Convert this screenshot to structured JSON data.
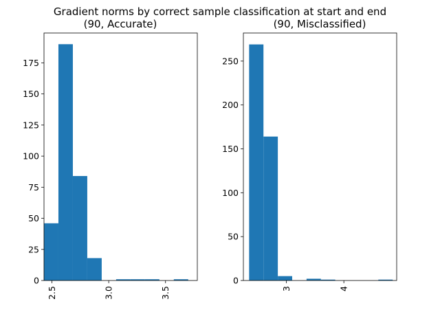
{
  "suptitle": "Gradient norms by correct sample classification at start and end",
  "chart_data": [
    {
      "type": "bar",
      "title": "(90, Accurate)",
      "xlim": [
        2.43,
        3.78
      ],
      "ylim": [
        0,
        199
      ],
      "xticks": [
        2.5,
        3.0,
        3.5
      ],
      "xtick_labels": [
        "2.5",
        "3.0",
        "3.5"
      ],
      "yticks": [
        0,
        25,
        50,
        75,
        100,
        125,
        150,
        175
      ],
      "ytick_labels": [
        "0",
        "25",
        "50",
        "75",
        "100",
        "125",
        "150",
        "175"
      ],
      "bin_edges": [
        2.43,
        2.557,
        2.684,
        2.811,
        2.938,
        3.065,
        3.192,
        3.319,
        3.446,
        3.573,
        3.7
      ],
      "values": [
        46,
        190,
        84,
        18,
        0,
        1,
        1,
        1,
        0,
        1
      ],
      "color": "#1f77b4",
      "grid": false,
      "legend": "none"
    },
    {
      "type": "bar",
      "title": "(90, Misclassified)",
      "xlim": [
        2.25,
        4.92
      ],
      "ylim": [
        0,
        282
      ],
      "xticks": [
        3,
        4
      ],
      "xtick_labels": [
        "3",
        "4"
      ],
      "yticks": [
        0,
        50,
        100,
        150,
        200,
        250
      ],
      "ytick_labels": [
        "0",
        "50",
        "100",
        "150",
        "200",
        "250"
      ],
      "bin_edges": [
        2.35,
        2.6,
        2.85,
        3.1,
        3.35,
        3.6,
        3.85,
        4.1,
        4.35,
        4.6,
        4.85
      ],
      "values": [
        269,
        164,
        5,
        0,
        2,
        1,
        0,
        0,
        0,
        1
      ],
      "color": "#1f77b4",
      "grid": false,
      "legend": "none"
    }
  ]
}
